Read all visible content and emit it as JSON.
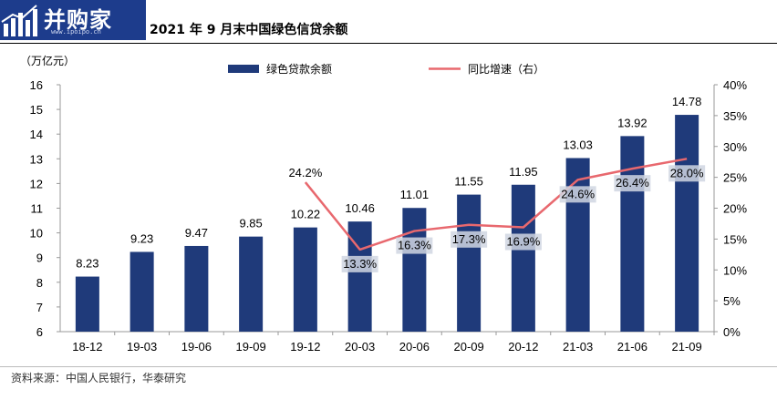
{
  "logo": {
    "name": "并购家",
    "url": "www.ipoipo.cn"
  },
  "title": "2021 年 9 月末中国绿色信贷余额",
  "source": "资料来源：中国人民银行，华泰研究",
  "colors": {
    "bar": "#1f3a7a",
    "line": "#e8686e",
    "label_band": "#d0d6e2"
  },
  "chart_data": {
    "type": "bar",
    "categories": [
      "18-12",
      "19-03",
      "19-06",
      "19-09",
      "19-12",
      "20-03",
      "20-06",
      "20-09",
      "20-12",
      "21-03",
      "21-06",
      "21-09"
    ],
    "y_left_unit": "（万亿元）",
    "y_left_ticks": [
      "6",
      "7",
      "8",
      "9",
      "10",
      "11",
      "12",
      "13",
      "14",
      "15",
      "16"
    ],
    "y_right_ticks": [
      "0%",
      "5%",
      "10%",
      "15%",
      "20%",
      "25%",
      "30%",
      "35%",
      "40%"
    ],
    "ylim": [
      6,
      16
    ],
    "y2lim": [
      0,
      40
    ],
    "series": [
      {
        "name": "绿色贷款余额",
        "type": "bar",
        "axis": "left",
        "values": [
          8.23,
          9.23,
          9.47,
          9.85,
          10.22,
          10.46,
          11.01,
          11.55,
          11.95,
          13.03,
          13.92,
          14.78
        ],
        "labels": [
          "8.23",
          "9.23",
          "9.47",
          "9.85",
          "10.22",
          "10.46",
          "11.01",
          "11.55",
          "11.95",
          "13.03",
          "13.92",
          "14.78"
        ]
      },
      {
        "name": "同比增速（右）",
        "type": "line",
        "axis": "right",
        "values": [
          null,
          null,
          null,
          null,
          24.2,
          13.3,
          16.3,
          17.3,
          16.9,
          24.6,
          26.4,
          28.0
        ],
        "labels": [
          null,
          null,
          null,
          null,
          "24.2%",
          "13.3%",
          "16.3%",
          "17.3%",
          "16.9%",
          "24.6%",
          "26.4%",
          "28.0%"
        ]
      }
    ],
    "legend_position": "top-center",
    "grid": false
  }
}
